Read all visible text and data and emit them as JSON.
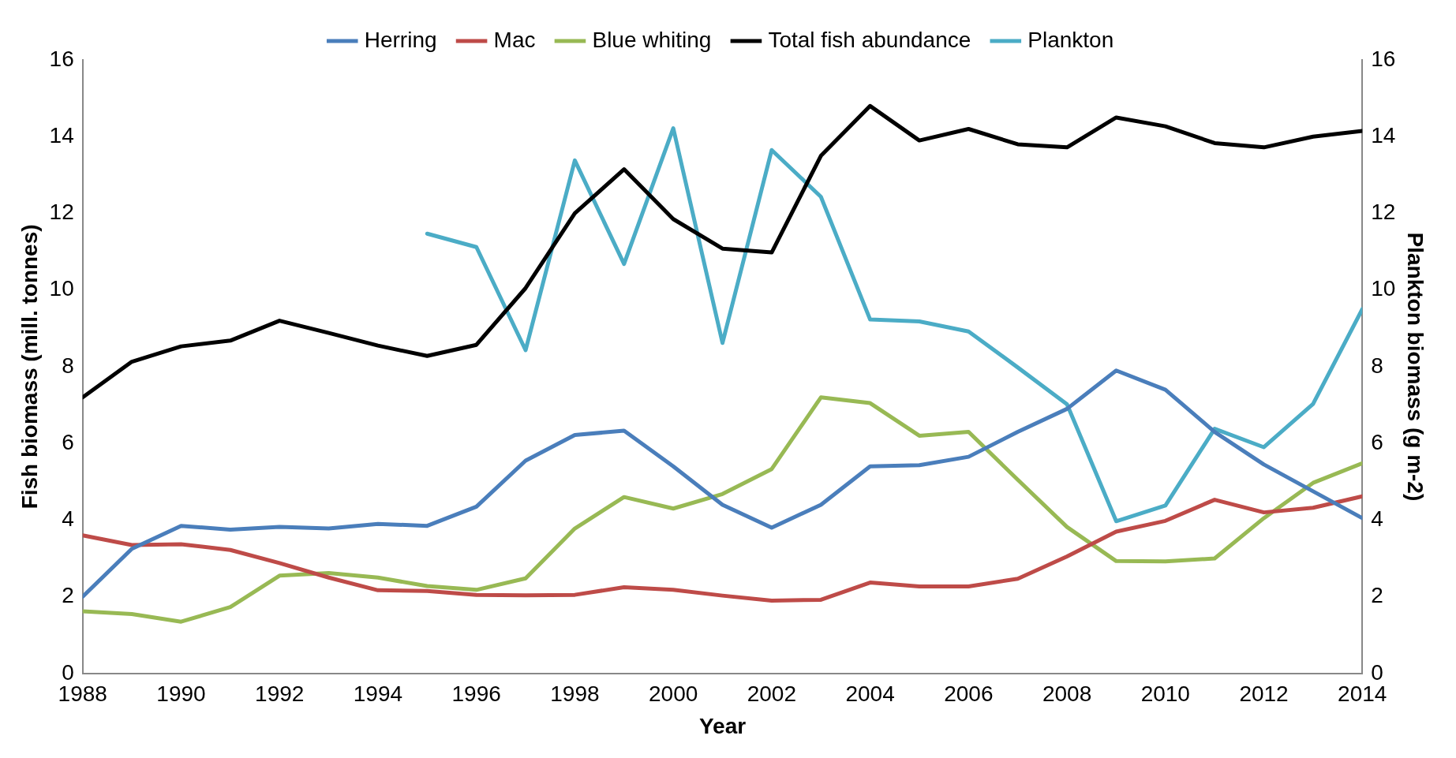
{
  "chart_data": {
    "type": "line",
    "xlabel": "Year",
    "ylabel": "Fish biomass (mill. tonnes)",
    "y2label": "Plankton biomass (g m-2)",
    "legend": "top",
    "marker": "none",
    "x": [
      1988,
      1989,
      1990,
      1991,
      1992,
      1993,
      1994,
      1995,
      1996,
      1997,
      1998,
      1999,
      2000,
      2001,
      2002,
      2003,
      2004,
      2005,
      2006,
      2007,
      2008,
      2009,
      2010,
      2011,
      2012,
      2013,
      2014
    ],
    "xlim": [
      1988,
      2014
    ],
    "xticks": [
      1988,
      1990,
      1992,
      1994,
      1996,
      1998,
      2000,
      2002,
      2004,
      2006,
      2008,
      2010,
      2012,
      2014
    ],
    "ylim": [
      0,
      16
    ],
    "yticks": [
      0,
      2,
      4,
      6,
      8,
      10,
      12,
      14,
      16
    ],
    "y2lim": [
      0,
      16
    ],
    "y2ticks": [
      0,
      2,
      4,
      6,
      8,
      10,
      12,
      14,
      16
    ],
    "series": [
      {
        "name": "Herring",
        "color": "#4a7ebb",
        "values": [
          2.0,
          3.25,
          3.85,
          3.75,
          3.82,
          3.78,
          3.9,
          3.85,
          4.35,
          5.55,
          6.22,
          6.33,
          5.4,
          4.4,
          3.8,
          4.4,
          5.4,
          5.43,
          5.65,
          6.3,
          6.9,
          7.9,
          7.4,
          6.3,
          5.45,
          4.75,
          4.05
        ]
      },
      {
        "name": "Mac",
        "color": "#be4b48",
        "values": [
          3.6,
          3.35,
          3.37,
          3.22,
          2.88,
          2.5,
          2.17,
          2.15,
          2.05,
          2.04,
          2.05,
          2.25,
          2.18,
          2.03,
          1.9,
          1.92,
          2.37,
          2.27,
          2.27,
          2.47,
          3.05,
          3.7,
          3.98,
          4.53,
          4.2,
          4.32,
          4.62
        ]
      },
      {
        "name": "Blue whiting",
        "color": "#98b954",
        "values": [
          1.62,
          1.55,
          1.35,
          1.73,
          2.55,
          2.62,
          2.5,
          2.28,
          2.18,
          2.48,
          3.78,
          4.6,
          4.3,
          4.68,
          5.33,
          7.2,
          7.05,
          6.2,
          6.3,
          5.05,
          3.82,
          2.93,
          2.92,
          3.0,
          4.05,
          4.97,
          5.48
        ]
      },
      {
        "name": "Total fish abundance",
        "color": "#000000",
        "values": [
          7.2,
          8.13,
          8.53,
          8.68,
          9.2,
          8.88,
          8.55,
          8.28,
          8.57,
          10.05,
          12.0,
          13.15,
          11.85,
          11.08,
          10.98,
          13.5,
          14.8,
          13.9,
          14.2,
          13.8,
          13.72,
          14.5,
          14.27,
          13.83,
          13.72,
          14.0,
          14.15
        ]
      },
      {
        "name": "Plankton",
        "color": "#4bacc6",
        "axis": "y2",
        "values": [
          null,
          null,
          null,
          null,
          null,
          null,
          null,
          11.47,
          11.12,
          8.43,
          13.38,
          10.68,
          14.22,
          8.62,
          13.65,
          12.43,
          9.23,
          9.18,
          8.92,
          7.98,
          7.02,
          3.97,
          4.38,
          6.38,
          5.9,
          7.03,
          9.5
        ]
      }
    ]
  }
}
